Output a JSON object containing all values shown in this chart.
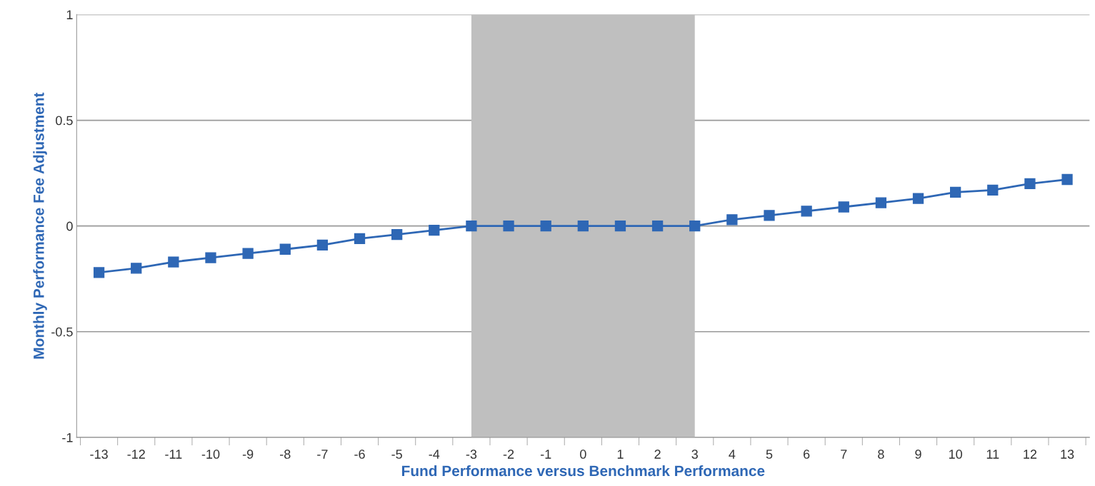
{
  "chart_data": {
    "type": "line",
    "xlabel": "Fund Performance versus Benchmark Performance",
    "ylabel": "Monthly Performance Fee Adjustment",
    "categories": [
      "-13",
      "-12",
      "-11",
      "-10",
      "-9",
      "-8",
      "-7",
      "-6",
      "-5",
      "-4",
      "-3",
      "-2",
      "-1",
      "0",
      "1",
      "2",
      "3",
      "4",
      "5",
      "6",
      "7",
      "8",
      "9",
      "10",
      "11",
      "12",
      "13"
    ],
    "series": [
      {
        "color": "#2e67b5",
        "values": [
          -0.22,
          -0.2,
          -0.17,
          -0.15,
          -0.13,
          -0.11,
          -0.09,
          -0.06,
          -0.04,
          -0.02,
          0,
          0,
          0,
          0,
          0,
          0,
          0,
          0.03,
          0.05,
          0.07,
          0.09,
          0.11,
          0.13,
          0.16,
          0.17,
          0.2,
          0.22
        ]
      }
    ],
    "ylim": [
      -1,
      1
    ],
    "yticks": [
      -1,
      -0.5,
      0,
      0.5,
      1
    ],
    "bands": [
      {
        "axis": "x",
        "from": "-3",
        "to": "3",
        "color": "#bfbfbf"
      }
    ],
    "grid": "y",
    "marker": "square",
    "line_style": "solid"
  }
}
